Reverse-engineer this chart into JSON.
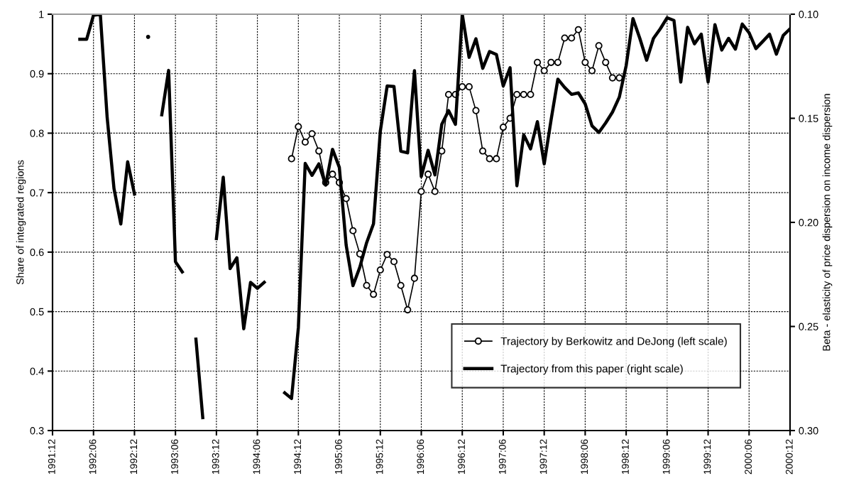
{
  "chart_data": {
    "type": "line",
    "ylabel": "Share of integrated regions",
    "y2label": "Beta - elasticity of price dispersion on income dispersion",
    "categories": [
      "1991:12",
      null,
      null,
      null,
      null,
      null,
      "1992:06",
      null,
      null,
      null,
      null,
      null,
      "1992:12",
      null,
      null,
      null,
      null,
      null,
      "1993:06",
      null,
      null,
      null,
      null,
      null,
      "1993:12",
      null,
      null,
      null,
      null,
      null,
      "1994:06",
      null,
      null,
      null,
      null,
      null,
      "1994:12",
      null,
      null,
      null,
      null,
      null,
      "1995:06",
      null,
      null,
      null,
      null,
      null,
      "1995:12",
      null,
      null,
      null,
      null,
      null,
      "1996:06",
      null,
      null,
      null,
      null,
      null,
      "1996:12",
      null,
      null,
      null,
      null,
      null,
      "1997:06",
      null,
      null,
      null,
      null,
      null,
      "1997:12",
      null,
      null,
      null,
      null,
      null,
      "1998:06",
      null,
      null,
      null,
      null,
      null,
      "1998:12",
      null,
      null,
      null,
      null,
      null,
      "1999:06",
      null,
      null,
      null,
      null,
      null,
      "1999:12",
      null,
      null,
      null,
      null,
      null,
      "2000:06",
      null,
      null,
      null,
      null,
      null,
      "2000:12"
    ],
    "series": [
      {
        "name": "Trajectory by Berkowitz and DeJong (left scale)",
        "color": "#000000",
        "marker": "circle",
        "values": [
          null,
          null,
          null,
          null,
          null,
          null,
          null,
          null,
          null,
          null,
          null,
          null,
          null,
          null,
          null,
          null,
          null,
          null,
          null,
          null,
          null,
          null,
          null,
          null,
          null,
          null,
          null,
          null,
          null,
          null,
          null,
          null,
          null,
          null,
          null,
          0.757,
          0.811,
          0.785,
          0.799,
          0.77,
          0.717,
          0.731,
          0.717,
          0.69,
          0.636,
          0.597,
          0.544,
          0.529,
          0.57,
          0.596,
          0.584,
          0.544,
          0.503,
          0.556,
          0.702,
          0.731,
          0.702,
          0.77,
          0.865,
          0.865,
          0.878,
          0.878,
          0.838,
          0.77,
          0.757,
          0.757,
          0.81,
          0.825,
          0.865,
          0.865,
          0.865,
          0.919,
          0.905,
          0.919,
          0.919,
          0.96,
          0.96,
          0.974,
          0.919,
          0.905,
          0.947,
          0.919,
          0.893,
          0.893,
          null,
          null,
          null,
          null,
          null,
          null,
          null,
          null,
          null,
          null,
          null,
          null,
          null,
          null,
          null,
          null,
          null,
          null,
          null,
          null,
          null,
          null,
          null,
          null,
          null
        ]
      },
      {
        "name": "Trajectory from this paper (right scale)",
        "color": "#000000",
        "axis": "y2",
        "values": [
          null,
          null,
          null,
          null,
          0.112,
          0.112,
          0.1005,
          0.1,
          0.1496,
          0.1837,
          0.2008,
          0.1709,
          0.1864,
          null,
          0.1109,
          null,
          0.1483,
          0.127,
          0.2189,
          0.2238,
          null,
          0.2561,
          0.2938,
          null,
          0.2078,
          0.1783,
          0.2222,
          0.217,
          0.2511,
          0.2288,
          0.2317,
          0.2288,
          null,
          null,
          0.2819,
          0.2846,
          0.2505,
          0.1717,
          0.1774,
          0.1719,
          0.1821,
          0.1649,
          0.1736,
          0.211,
          0.2304,
          0.2215,
          0.2097,
          0.2007,
          0.1562,
          0.1345,
          0.1347,
          0.1658,
          0.1666,
          0.1271,
          0.178,
          0.1654,
          0.1772,
          0.1529,
          0.1463,
          0.1529,
          0.1,
          0.1207,
          0.1118,
          0.126,
          0.1179,
          0.1194,
          0.1345,
          0.1257,
          0.1824,
          0.1579,
          0.1647,
          0.1516,
          0.1719,
          0.1509,
          0.1312,
          0.1352,
          0.1385,
          0.1378,
          0.1431,
          0.1536,
          0.1568,
          0.1522,
          0.147,
          0.1398,
          0.1247,
          0.1021,
          0.1116,
          0.1221,
          0.1116,
          0.107,
          0.1017,
          0.103,
          0.1326,
          0.1063,
          0.1142,
          0.1096,
          0.1326,
          0.105,
          0.1172,
          0.1116,
          0.1168,
          0.1047,
          0.1089,
          0.1165,
          0.1131,
          0.1096,
          0.1192,
          0.1102,
          0.107
        ]
      }
    ],
    "ylim": [
      0.3,
      1
    ],
    "yticks": [
      0.3,
      0.4,
      0.5,
      0.6,
      0.7,
      0.8,
      0.9,
      1
    ],
    "y2lim": [
      0.3,
      0.1
    ],
    "y2ticks": [
      {
        "value": 0.1,
        "label": "0.10"
      },
      0.15,
      {
        "value": 0.2,
        "label": "0.20"
      },
      0.25,
      {
        "value": 0.3,
        "label": "0.30"
      }
    ],
    "grid": true,
    "legend": "lower right"
  }
}
